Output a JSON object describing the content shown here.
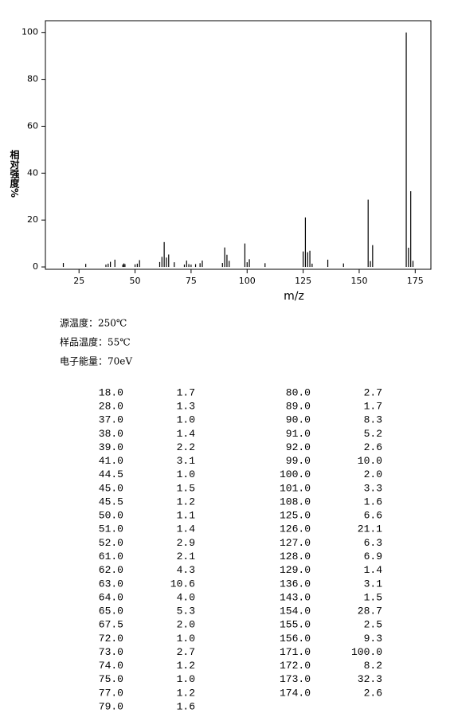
{
  "chart_data": {
    "type": "stem",
    "xlabel": "m/z",
    "ylabel": "相对强度%",
    "x": [
      18,
      28,
      37,
      38,
      39,
      41,
      44.5,
      45,
      45.5,
      50,
      51,
      52,
      61,
      62,
      63,
      64,
      65,
      67.5,
      72,
      73,
      74,
      75,
      77,
      79,
      80,
      89,
      90,
      91,
      92,
      99,
      100,
      101,
      108,
      125,
      126,
      127,
      128,
      129,
      136,
      143,
      154,
      155,
      156,
      171,
      172,
      173,
      174
    ],
    "values": [
      1.7,
      1.3,
      1.0,
      1.4,
      2.2,
      3.1,
      1.0,
      1.5,
      1.2,
      1.1,
      1.4,
      2.9,
      2.1,
      4.3,
      10.6,
      4.0,
      5.3,
      2.0,
      1.0,
      2.7,
      1.2,
      1.0,
      1.2,
      1.6,
      2.7,
      1.7,
      8.3,
      5.2,
      2.6,
      10.0,
      2.0,
      3.3,
      1.6,
      6.6,
      21.1,
      6.3,
      6.9,
      1.4,
      3.1,
      1.5,
      28.7,
      2.5,
      9.3,
      100.0,
      8.2,
      32.3,
      2.6
    ],
    "color": "#000000",
    "xlim": [
      10,
      182
    ],
    "xticks": [
      25,
      50,
      75,
      100,
      125,
      150,
      175
    ],
    "ylim": [
      -1,
      105
    ],
    "yticks": [
      0,
      20,
      40,
      60,
      80,
      100
    ]
  },
  "conditions": [
    "源温度：250℃",
    "样品温度：55℃",
    "电子能量：70eV"
  ],
  "table": {
    "rows": [
      [
        "18.0",
        "1.7"
      ],
      [
        "28.0",
        "1.3"
      ],
      [
        "37.0",
        "1.0"
      ],
      [
        "38.0",
        "1.4"
      ],
      [
        "39.0",
        "2.2"
      ],
      [
        "41.0",
        "3.1"
      ],
      [
        "44.5",
        "1.0"
      ],
      [
        "45.0",
        "1.5"
      ],
      [
        "45.5",
        "1.2"
      ],
      [
        "50.0",
        "1.1"
      ],
      [
        "51.0",
        "1.4"
      ],
      [
        "52.0",
        "2.9"
      ],
      [
        "61.0",
        "2.1"
      ],
      [
        "62.0",
        "4.3"
      ],
      [
        "63.0",
        "10.6"
      ],
      [
        "64.0",
        "4.0"
      ],
      [
        "65.0",
        "5.3"
      ],
      [
        "67.5",
        "2.0"
      ],
      [
        "72.0",
        "1.0"
      ],
      [
        "73.0",
        "2.7"
      ],
      [
        "74.0",
        "1.2"
      ],
      [
        "75.0",
        "1.0"
      ],
      [
        "77.0",
        "1.2"
      ],
      [
        "79.0",
        "1.6"
      ],
      [
        "80.0",
        "2.7"
      ],
      [
        "89.0",
        "1.7"
      ],
      [
        "90.0",
        "8.3"
      ],
      [
        "91.0",
        "5.2"
      ],
      [
        "92.0",
        "2.6"
      ],
      [
        "99.0",
        "10.0"
      ],
      [
        "100.0",
        "2.0"
      ],
      [
        "101.0",
        "3.3"
      ],
      [
        "108.0",
        "1.6"
      ],
      [
        "125.0",
        "6.6"
      ],
      [
        "126.0",
        "21.1"
      ],
      [
        "127.0",
        "6.3"
      ],
      [
        "128.0",
        "6.9"
      ],
      [
        "129.0",
        "1.4"
      ],
      [
        "136.0",
        "3.1"
      ],
      [
        "143.0",
        "1.5"
      ],
      [
        "154.0",
        "28.7"
      ],
      [
        "155.0",
        "2.5"
      ],
      [
        "156.0",
        "9.3"
      ],
      [
        "171.0",
        "100.0"
      ],
      [
        "172.0",
        "8.2"
      ],
      [
        "173.0",
        "32.3"
      ],
      [
        "174.0",
        "2.6"
      ]
    ]
  }
}
